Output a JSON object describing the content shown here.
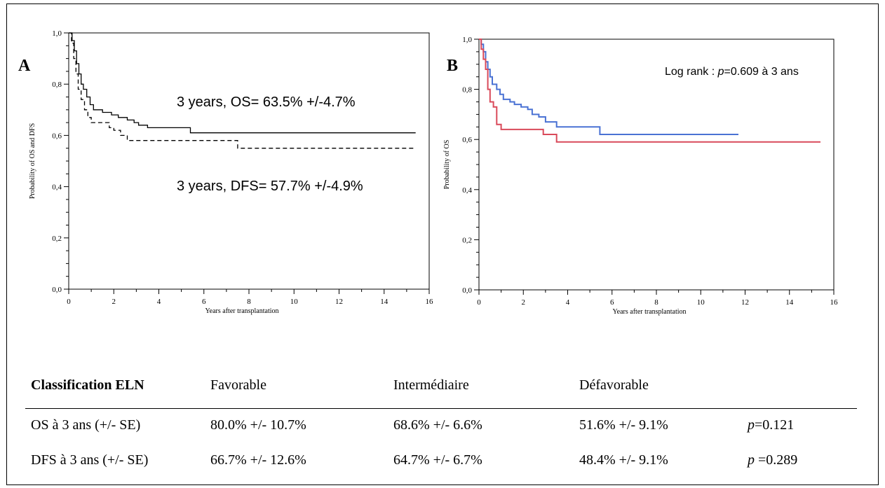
{
  "chart_data": [
    {
      "type": "line",
      "panel": "A",
      "x_ticks": [
        "0",
        "2",
        "4",
        "6",
        "8",
        "10",
        "12",
        "14",
        "16"
      ],
      "y_ticks": [
        "0,0",
        "0,2",
        "0,4",
        "0,6",
        "0,8",
        "1,0"
      ],
      "xlim": [
        0,
        16
      ],
      "ylim": [
        0,
        1
      ],
      "xlabel": "Years after transplantation",
      "ylabel": "Probability of OS and DFS",
      "annotations": [
        "3 years, OS= 63.5% +/-4.7%",
        "3 years, DFS= 57.7% +/-4.9%"
      ],
      "series": [
        {
          "style": "solid",
          "color": "#000000",
          "points": [
            [
              0,
              1.0
            ],
            [
              0.15,
              0.97
            ],
            [
              0.25,
              0.93
            ],
            [
              0.35,
              0.88
            ],
            [
              0.45,
              0.84
            ],
            [
              0.55,
              0.8
            ],
            [
              0.65,
              0.78
            ],
            [
              0.8,
              0.75
            ],
            [
              0.95,
              0.72
            ],
            [
              1.1,
              0.7
            ],
            [
              1.5,
              0.69
            ],
            [
              1.9,
              0.68
            ],
            [
              2.2,
              0.67
            ],
            [
              2.6,
              0.66
            ],
            [
              2.9,
              0.65
            ],
            [
              3.1,
              0.64
            ],
            [
              3.5,
              0.63
            ],
            [
              5.4,
              0.61
            ],
            [
              15.4,
              0.61
            ]
          ]
        },
        {
          "style": "dashed",
          "color": "#000000",
          "points": [
            [
              0,
              1.0
            ],
            [
              0.12,
              0.96
            ],
            [
              0.22,
              0.9
            ],
            [
              0.32,
              0.84
            ],
            [
              0.42,
              0.78
            ],
            [
              0.55,
              0.74
            ],
            [
              0.7,
              0.7
            ],
            [
              0.85,
              0.67
            ],
            [
              1.0,
              0.65
            ],
            [
              1.8,
              0.63
            ],
            [
              2.0,
              0.62
            ],
            [
              2.3,
              0.6
            ],
            [
              2.6,
              0.58
            ],
            [
              7.4,
              0.58
            ],
            [
              7.5,
              0.55
            ],
            [
              15.4,
              0.55
            ]
          ]
        }
      ]
    },
    {
      "type": "line",
      "panel": "B",
      "x_ticks": [
        "0",
        "2",
        "4",
        "6",
        "8",
        "10",
        "12",
        "14",
        "16"
      ],
      "y_ticks": [
        "0,0",
        "0,2",
        "0,4",
        "0,6",
        "0,8",
        "1,0"
      ],
      "xlim": [
        0,
        16
      ],
      "ylim": [
        0,
        1
      ],
      "xlabel": "Years after transplantation",
      "ylabel": "Probability of OS",
      "annotation": {
        "prefix": "Log rank : ",
        "p": "p",
        "suffix": "=0.609 à 3 ans"
      },
      "series": [
        {
          "color": "#4a72d4",
          "points": [
            [
              0,
              1.0
            ],
            [
              0.1,
              0.98
            ],
            [
              0.2,
              0.95
            ],
            [
              0.3,
              0.91
            ],
            [
              0.4,
              0.88
            ],
            [
              0.5,
              0.85
            ],
            [
              0.6,
              0.82
            ],
            [
              0.8,
              0.8
            ],
            [
              0.95,
              0.78
            ],
            [
              1.1,
              0.76
            ],
            [
              1.4,
              0.75
            ],
            [
              1.6,
              0.74
            ],
            [
              1.9,
              0.73
            ],
            [
              2.2,
              0.72
            ],
            [
              2.4,
              0.7
            ],
            [
              2.7,
              0.69
            ],
            [
              3.0,
              0.67
            ],
            [
              3.5,
              0.65
            ],
            [
              5.4,
              0.65
            ],
            [
              5.45,
              0.62
            ],
            [
              11.7,
              0.62
            ]
          ]
        },
        {
          "color": "#d94a5a",
          "points": [
            [
              0,
              1.0
            ],
            [
              0.1,
              0.96
            ],
            [
              0.2,
              0.92
            ],
            [
              0.3,
              0.88
            ],
            [
              0.4,
              0.8
            ],
            [
              0.5,
              0.75
            ],
            [
              0.65,
              0.73
            ],
            [
              0.8,
              0.66
            ],
            [
              1.0,
              0.64
            ],
            [
              2.9,
              0.62
            ],
            [
              3.5,
              0.59
            ],
            [
              15.4,
              0.59
            ]
          ]
        }
      ]
    }
  ],
  "panels": {
    "a_label": "A",
    "b_label": "B",
    "os_annot": "3 years, OS= 63.5% +/-4.7%",
    "dfs_annot": "3 years, DFS= 57.7% +/-4.9%"
  },
  "table": {
    "header": [
      "Classification ELN",
      "Favorable",
      "Intermédiaire",
      "Défavorable"
    ],
    "rows": [
      {
        "label": "OS à 3 ans (+/- SE)",
        "cells": [
          "80.0% +/- 10.7%",
          "68.6% +/- 6.6%",
          "51.6% +/- 9.1%"
        ],
        "p": "p",
        "pval": "=0.121"
      },
      {
        "label": "DFS à 3 ans (+/- SE)",
        "cells": [
          "66.7% +/- 12.6%",
          "64.7% +/- 6.7%",
          "48.4% +/- 9.1%"
        ],
        "p": "p",
        "pval": " =0.289"
      }
    ]
  }
}
